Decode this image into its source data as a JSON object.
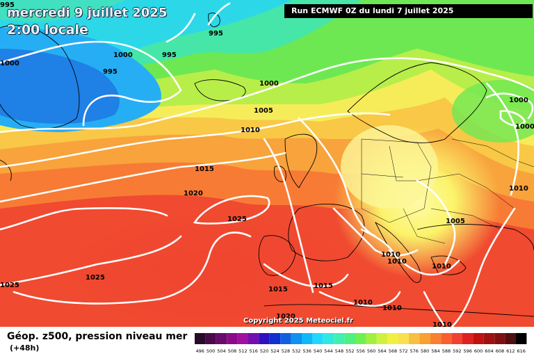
{
  "map": {
    "title_date": "mercredi 9 juillet 2025",
    "title_time": "2:00 locale",
    "run_info": "Run ECMWF 0Z du lundi 7 juillet 2025",
    "copyright": "Copyright 2025 Meteociel.fr",
    "isobars": [
      {
        "id": "iso-995-nw",
        "label": "995"
      },
      {
        "id": "iso-995-a",
        "label": "995"
      },
      {
        "id": "iso-995-b",
        "label": "995"
      },
      {
        "id": "iso-995-c",
        "label": "995"
      },
      {
        "id": "iso-1000-a",
        "label": "1000"
      },
      {
        "id": "iso-1000-b",
        "label": "1000"
      },
      {
        "id": "iso-1000-c",
        "label": "1000"
      },
      {
        "id": "iso-1000-d",
        "label": "1000"
      },
      {
        "id": "iso-1000-e",
        "label": "1000"
      },
      {
        "id": "iso-1005-a",
        "label": "1005"
      },
      {
        "id": "iso-1005-b",
        "label": "1005"
      },
      {
        "id": "iso-1010-a",
        "label": "1010"
      },
      {
        "id": "iso-1010-b",
        "label": "1010"
      },
      {
        "id": "iso-1010-c",
        "label": "1010"
      },
      {
        "id": "iso-1010-d",
        "label": "1010"
      },
      {
        "id": "iso-1010-e",
        "label": "1010"
      },
      {
        "id": "iso-1010-f",
        "label": "1010"
      },
      {
        "id": "iso-1010-g",
        "label": "1010"
      },
      {
        "id": "iso-1010-h",
        "label": "1010"
      },
      {
        "id": "iso-1015-a",
        "label": "1015"
      },
      {
        "id": "iso-1015-b",
        "label": "1015"
      },
      {
        "id": "iso-1015-c",
        "label": "1015"
      },
      {
        "id": "iso-1020-a",
        "label": "1020"
      },
      {
        "id": "iso-1020-b",
        "label": "1020"
      },
      {
        "id": "iso-1025-a",
        "label": "1025"
      },
      {
        "id": "iso-1025-b",
        "label": "1025"
      },
      {
        "id": "iso-1025-c",
        "label": "1025"
      }
    ]
  },
  "legend": {
    "title": "Géop. z500, pression niveau mer",
    "subtitle": "(+48h)",
    "scale": [
      {
        "label": "496",
        "color": "#2a0a2a"
      },
      {
        "label": "500",
        "color": "#4a0a4a"
      },
      {
        "label": "504",
        "color": "#6a0a6a"
      },
      {
        "label": "508",
        "color": "#8a0a8a"
      },
      {
        "label": "512",
        "color": "#a010a0"
      },
      {
        "label": "516",
        "color": "#7010b0"
      },
      {
        "label": "520",
        "color": "#3010c0"
      },
      {
        "label": "524",
        "color": "#1030d0"
      },
      {
        "label": "528",
        "color": "#1060e0"
      },
      {
        "label": "532",
        "color": "#1090f0"
      },
      {
        "label": "536",
        "color": "#10b8f8"
      },
      {
        "label": "540",
        "color": "#20d8ff"
      },
      {
        "label": "544",
        "color": "#30e8e0"
      },
      {
        "label": "548",
        "color": "#40f0b0"
      },
      {
        "label": "552",
        "color": "#50f080"
      },
      {
        "label": "556",
        "color": "#70f050"
      },
      {
        "label": "560",
        "color": "#a0f040"
      },
      {
        "label": "564",
        "color": "#d0f040"
      },
      {
        "label": "568",
        "color": "#f0f040"
      },
      {
        "label": "572",
        "color": "#f8e050"
      },
      {
        "label": "576",
        "color": "#f8c040"
      },
      {
        "label": "580",
        "color": "#f8a030"
      },
      {
        "label": "584",
        "color": "#f88030"
      },
      {
        "label": "588",
        "color": "#f86030"
      },
      {
        "label": "592",
        "color": "#f04030"
      },
      {
        "label": "596",
        "color": "#e02020"
      },
      {
        "label": "600",
        "color": "#c01010"
      },
      {
        "label": "604",
        "color": "#a01010"
      },
      {
        "label": "608",
        "color": "#801010"
      },
      {
        "label": "612",
        "color": "#501010"
      },
      {
        "label": "616",
        "color": "#000000"
      }
    ]
  }
}
